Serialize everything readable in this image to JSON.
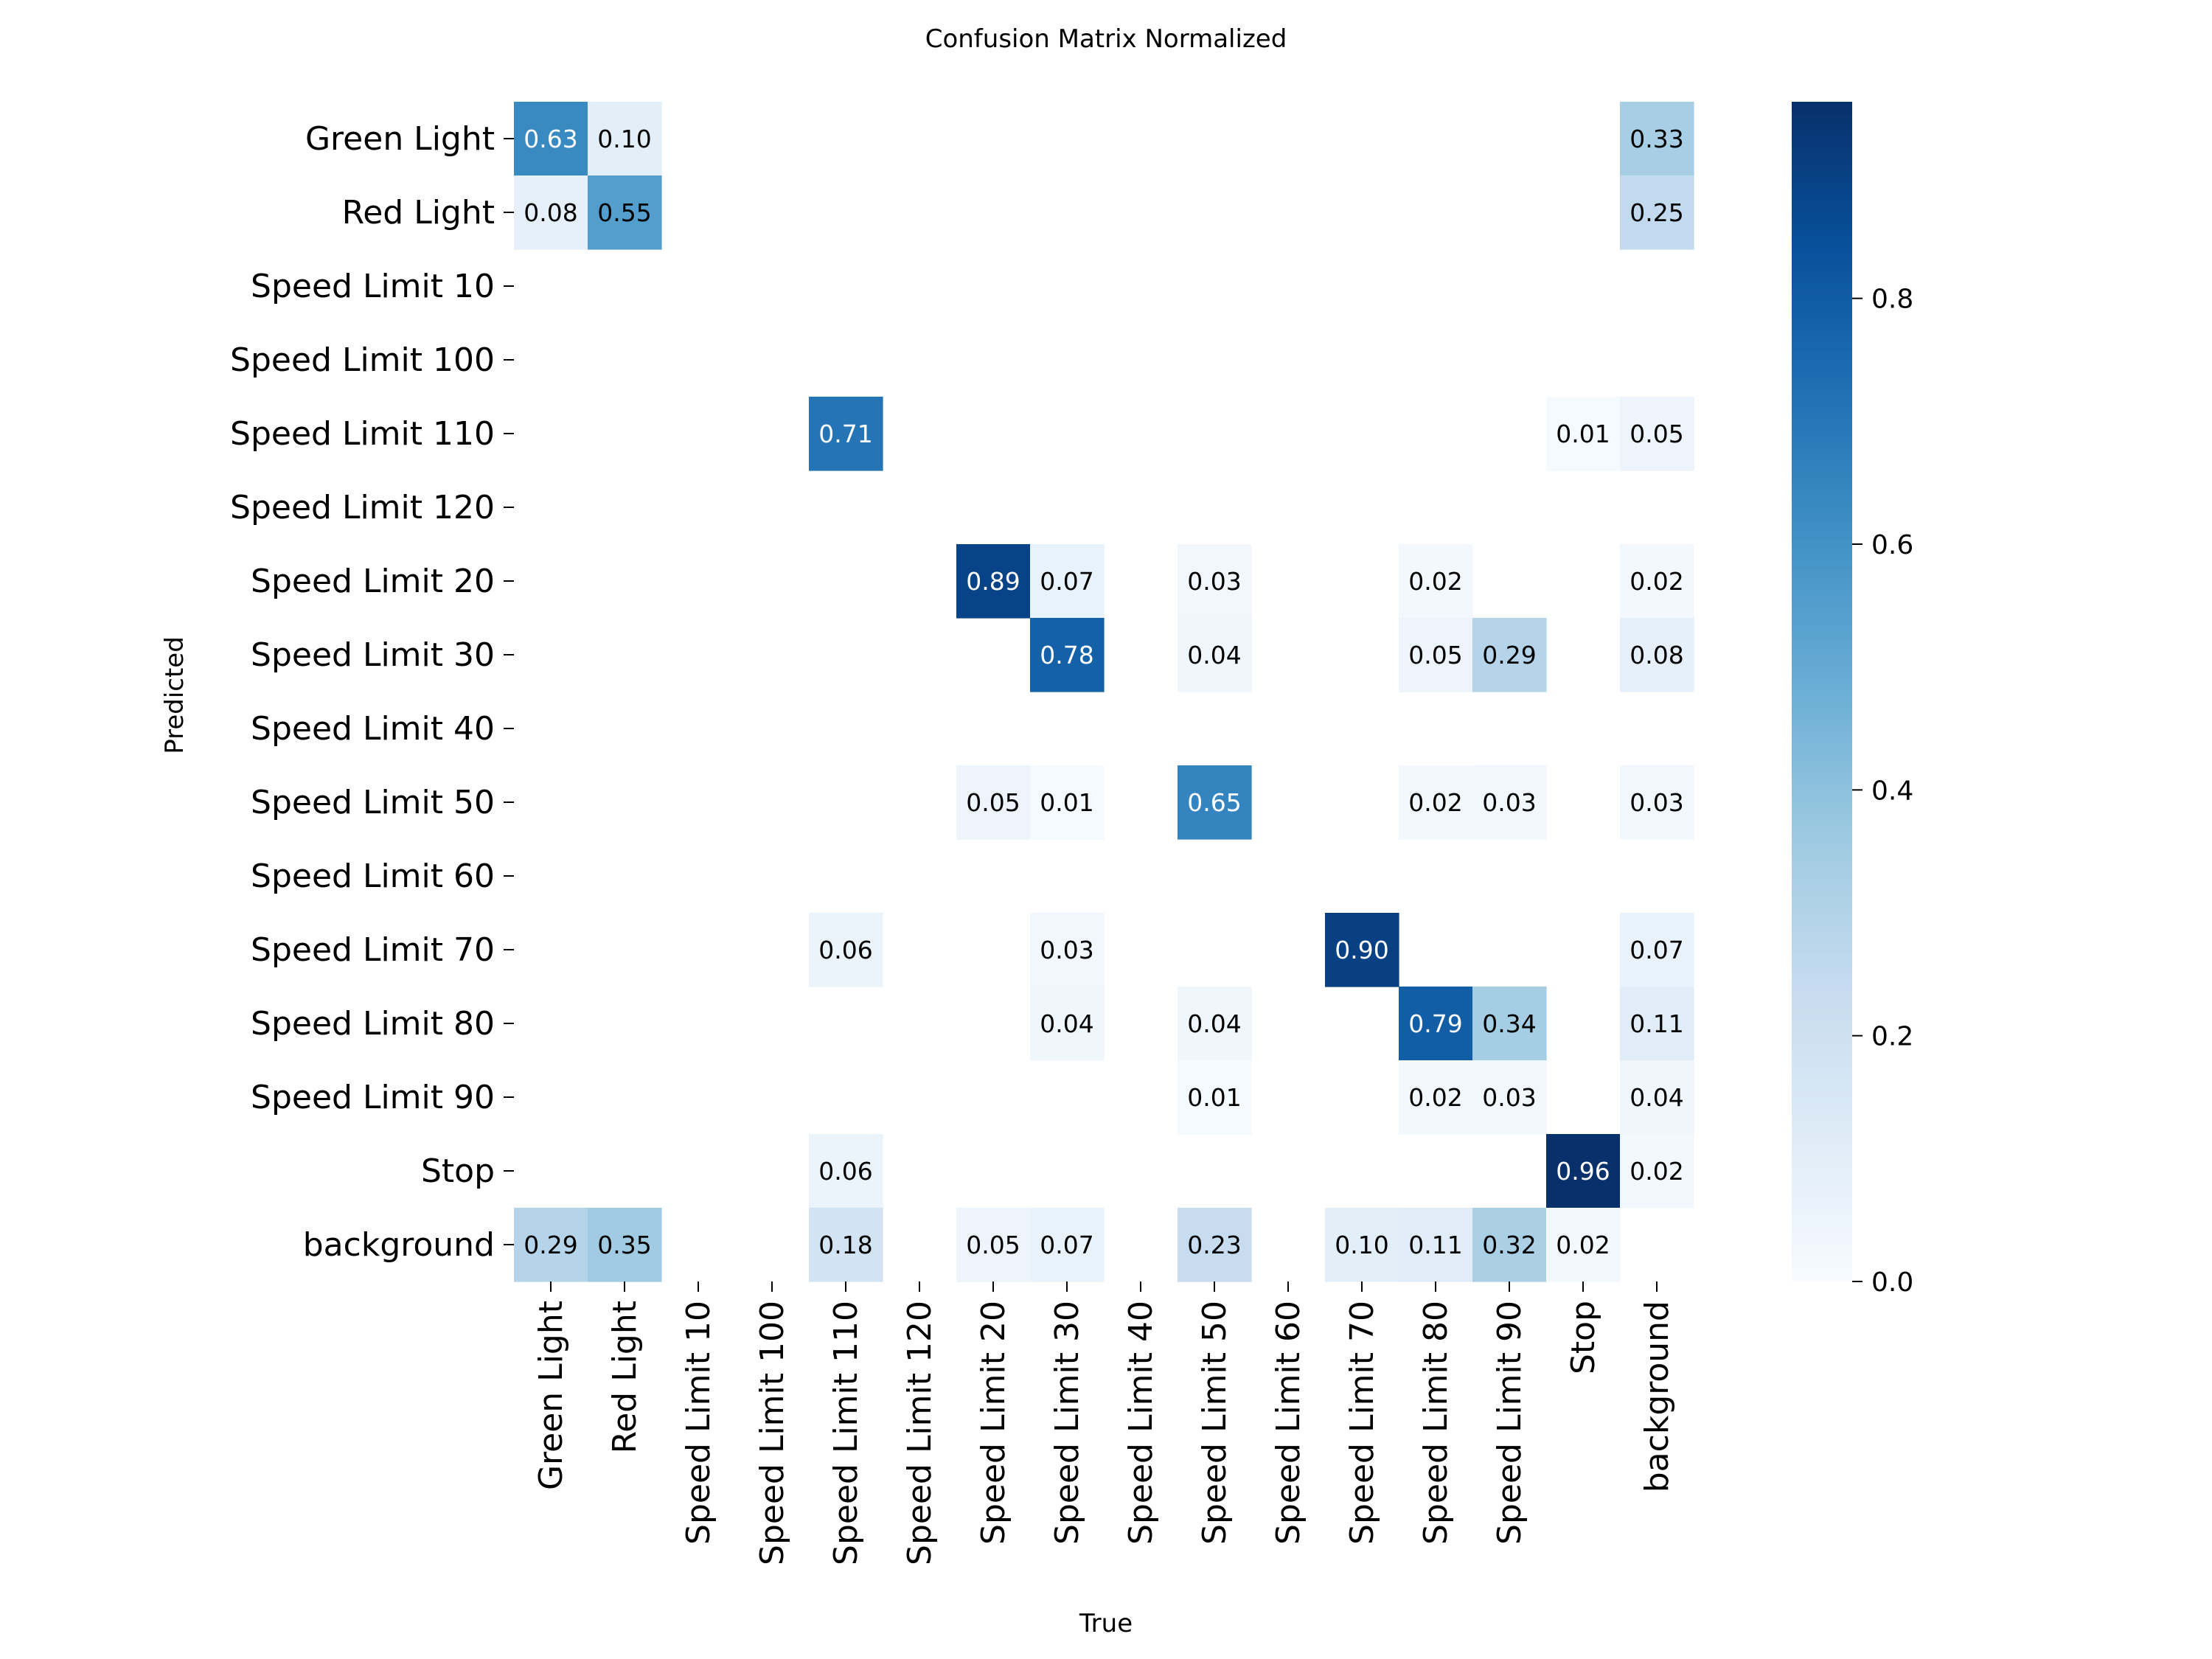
{
  "chart_data": {
    "type": "heatmap",
    "title": "Confusion Matrix Normalized",
    "xlabel": "True",
    "ylabel": "Predicted",
    "row_labels": [
      "Green Light",
      "Red Light",
      "Speed Limit 10",
      "Speed Limit 100",
      "Speed Limit 110",
      "Speed Limit 120",
      "Speed Limit 20",
      "Speed Limit 30",
      "Speed Limit 40",
      "Speed Limit 50",
      "Speed Limit 60",
      "Speed Limit 70",
      "Speed Limit 80",
      "Speed Limit 90",
      "Stop",
      "background"
    ],
    "col_labels": [
      "Green Light",
      "Red Light",
      "Speed Limit 10",
      "Speed Limit 100",
      "Speed Limit 110",
      "Speed Limit 120",
      "Speed Limit 20",
      "Speed Limit 30",
      "Speed Limit 40",
      "Speed Limit 50",
      "Speed Limit 60",
      "Speed Limit 70",
      "Speed Limit 80",
      "Speed Limit 90",
      "Stop",
      "background"
    ],
    "values": [
      [
        0.63,
        0.1,
        null,
        null,
        null,
        null,
        null,
        null,
        null,
        null,
        null,
        null,
        null,
        null,
        null,
        0.33
      ],
      [
        0.08,
        0.55,
        null,
        null,
        null,
        null,
        null,
        null,
        null,
        null,
        null,
        null,
        null,
        null,
        null,
        0.25
      ],
      [
        null,
        null,
        null,
        null,
        null,
        null,
        null,
        null,
        null,
        null,
        null,
        null,
        null,
        null,
        null,
        null
      ],
      [
        null,
        null,
        null,
        null,
        null,
        null,
        null,
        null,
        null,
        null,
        null,
        null,
        null,
        null,
        null,
        null
      ],
      [
        null,
        null,
        null,
        null,
        0.71,
        null,
        null,
        null,
        null,
        null,
        null,
        null,
        null,
        null,
        0.01,
        0.05
      ],
      [
        null,
        null,
        null,
        null,
        null,
        null,
        null,
        null,
        null,
        null,
        null,
        null,
        null,
        null,
        null,
        null
      ],
      [
        null,
        null,
        null,
        null,
        null,
        null,
        0.89,
        0.07,
        null,
        0.03,
        null,
        null,
        0.02,
        null,
        null,
        0.02
      ],
      [
        null,
        null,
        null,
        null,
        null,
        null,
        null,
        0.78,
        null,
        0.04,
        null,
        null,
        0.05,
        0.29,
        null,
        0.08
      ],
      [
        null,
        null,
        null,
        null,
        null,
        null,
        null,
        null,
        null,
        null,
        null,
        null,
        null,
        null,
        null,
        null
      ],
      [
        null,
        null,
        null,
        null,
        null,
        null,
        0.05,
        0.01,
        null,
        0.65,
        null,
        null,
        0.02,
        0.03,
        null,
        0.03
      ],
      [
        null,
        null,
        null,
        null,
        null,
        null,
        null,
        null,
        null,
        null,
        null,
        null,
        null,
        null,
        null,
        null
      ],
      [
        null,
        null,
        null,
        null,
        0.06,
        null,
        null,
        0.03,
        null,
        null,
        null,
        0.9,
        null,
        null,
        null,
        0.07
      ],
      [
        null,
        null,
        null,
        null,
        null,
        null,
        null,
        0.04,
        null,
        0.04,
        null,
        null,
        0.79,
        0.34,
        null,
        0.11
      ],
      [
        null,
        null,
        null,
        null,
        null,
        null,
        null,
        null,
        null,
        0.01,
        null,
        null,
        0.02,
        0.03,
        null,
        0.04
      ],
      [
        null,
        null,
        null,
        null,
        0.06,
        null,
        null,
        null,
        null,
        null,
        null,
        null,
        null,
        null,
        0.96,
        0.02
      ],
      [
        0.29,
        0.35,
        null,
        null,
        0.18,
        null,
        0.05,
        0.07,
        null,
        0.23,
        null,
        0.1,
        0.11,
        0.32,
        0.02,
        null
      ]
    ],
    "colorbar": {
      "min": 0.0,
      "max": 0.96,
      "ticks": [
        0.0,
        0.2,
        0.4,
        0.6,
        0.8
      ],
      "tick_labels": [
        "0.0",
        "0.2",
        "0.4",
        "0.6",
        "0.8"
      ]
    },
    "colormap": "Blues",
    "colormap_stops": [
      "#f7fbff",
      "#deebf7",
      "#c6dbef",
      "#9ecae1",
      "#6baed6",
      "#4292c6",
      "#2171b5",
      "#08519c",
      "#08306b"
    ]
  }
}
